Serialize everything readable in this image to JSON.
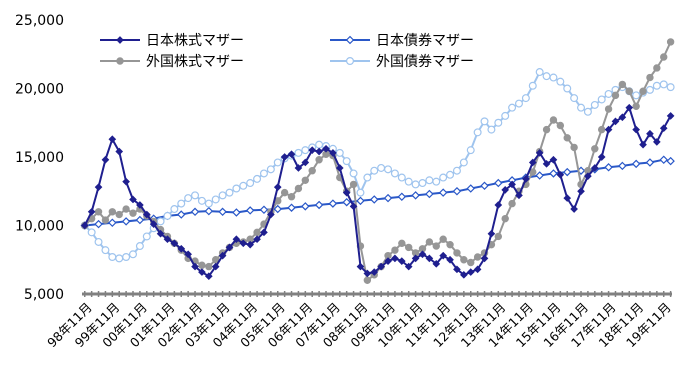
{
  "chart_data": {
    "type": "line",
    "title": "",
    "xlabel": "",
    "ylabel": "",
    "ylim": [
      5000,
      25000
    ],
    "yticks": [
      5000,
      10000,
      15000,
      20000,
      25000
    ],
    "ytick_labels": [
      "5,000",
      "10,000",
      "15,000",
      "20,000",
      "25,000"
    ],
    "xticks": [
      "98年11月",
      "99年11月",
      "00年11月",
      "01年11月",
      "02年11月",
      "03年11月",
      "04年11月",
      "05年11月",
      "06年11月",
      "07年11月",
      "08年11月",
      "09年11月",
      "10年11月",
      "11年11月",
      "12年11月",
      "13年11月",
      "14年11月",
      "15年11月",
      "16年11月",
      "17年11月",
      "18年11月",
      "19年11月"
    ],
    "xtick_positions": [
      0,
      1,
      2,
      3,
      4,
      5,
      6,
      7,
      8,
      9,
      10,
      11,
      12,
      13,
      14,
      15,
      16,
      17,
      18,
      19,
      20,
      21
    ],
    "legend_position": "top",
    "grid": false,
    "x_axis_color": "#808080",
    "series": [
      {
        "name": "日本株式マザー",
        "color": "#1f1f8f",
        "marker": "diamond",
        "x": [
          0,
          0.25,
          0.5,
          0.75,
          1,
          1.25,
          1.5,
          1.75,
          2,
          2.25,
          2.5,
          2.75,
          3,
          3.25,
          3.5,
          3.75,
          4,
          4.25,
          4.5,
          4.75,
          5,
          5.25,
          5.5,
          5.75,
          6,
          6.25,
          6.5,
          6.75,
          7,
          7.25,
          7.5,
          7.75,
          8,
          8.25,
          8.5,
          8.75,
          9,
          9.25,
          9.5,
          9.75,
          10,
          10.25,
          10.5,
          10.75,
          11,
          11.25,
          11.5,
          11.75,
          12,
          12.25,
          12.5,
          12.75,
          13,
          13.25,
          13.5,
          13.75,
          14,
          14.25,
          14.5,
          14.75,
          15,
          15.25,
          15.5,
          15.75,
          16,
          16.25,
          16.5,
          16.75,
          17,
          17.25,
          17.5,
          17.75,
          18,
          18.25,
          18.5,
          18.75,
          19,
          19.25,
          19.5,
          19.75,
          20,
          20.25,
          20.5,
          20.75,
          21,
          21.25
        ],
        "y": [
          10000,
          11000,
          12800,
          14800,
          16300,
          15400,
          13200,
          11900,
          11500,
          10800,
          10100,
          9400,
          9000,
          8700,
          8300,
          7900,
          7000,
          6600,
          6300,
          7000,
          7800,
          8400,
          9000,
          8700,
          8600,
          9000,
          9500,
          10800,
          12800,
          15000,
          15200,
          14200,
          14600,
          15500,
          15400,
          15600,
          15300,
          14200,
          12400,
          11400,
          7000,
          6500,
          6600,
          7000,
          7400,
          7600,
          7400,
          7000,
          7600,
          7900,
          7600,
          7200,
          7800,
          7500,
          6800,
          6400,
          6600,
          6800,
          7600,
          9400,
          11500,
          12600,
          13000,
          12200,
          13400,
          14600,
          15300,
          14500,
          14800,
          13700,
          12000,
          11200,
          12500,
          13600,
          14200,
          15000,
          17000,
          17600,
          17900,
          18600,
          17000,
          15900,
          16700,
          16100,
          17100,
          18000
        ]
      },
      {
        "name": "日本債券マザー",
        "color": "#2a58c8",
        "marker": "open-diamond",
        "x": [
          0,
          0.5,
          1,
          1.5,
          2,
          2.5,
          3,
          3.5,
          4,
          4.5,
          5,
          5.5,
          6,
          6.5,
          7,
          7.5,
          8,
          8.5,
          9,
          9.5,
          10,
          10.5,
          11,
          11.5,
          12,
          12.5,
          13,
          13.5,
          14,
          14.5,
          15,
          15.5,
          16,
          16.5,
          17,
          17.5,
          18,
          18.5,
          19,
          19.5,
          20,
          20.5,
          21,
          21.25
        ],
        "y": [
          10000,
          10100,
          10200,
          10300,
          10400,
          10500,
          10700,
          10800,
          11000,
          11050,
          11000,
          10950,
          11100,
          11150,
          11200,
          11300,
          11400,
          11500,
          11600,
          11700,
          11800,
          11900,
          12000,
          12100,
          12200,
          12300,
          12400,
          12500,
          12700,
          12900,
          13100,
          13300,
          13500,
          13650,
          13800,
          13900,
          14000,
          14100,
          14250,
          14350,
          14500,
          14600,
          14800,
          14700
        ]
      },
      {
        "name": "外国株式マザー",
        "color": "#969696",
        "marker": "circle",
        "x": [
          0,
          0.25,
          0.5,
          0.75,
          1,
          1.25,
          1.5,
          1.75,
          2,
          2.25,
          2.5,
          2.75,
          3,
          3.25,
          3.5,
          3.75,
          4,
          4.25,
          4.5,
          4.75,
          5,
          5.25,
          5.5,
          5.75,
          6,
          6.25,
          6.5,
          6.75,
          7,
          7.25,
          7.5,
          7.75,
          8,
          8.25,
          8.5,
          8.75,
          9,
          9.25,
          9.5,
          9.75,
          10,
          10.25,
          10.5,
          10.75,
          11,
          11.25,
          11.5,
          11.75,
          12,
          12.25,
          12.5,
          12.75,
          13,
          13.25,
          13.5,
          13.75,
          14,
          14.25,
          14.5,
          14.75,
          15,
          15.25,
          15.5,
          15.75,
          16,
          16.25,
          16.5,
          16.75,
          17,
          17.25,
          17.5,
          17.75,
          18,
          18.25,
          18.5,
          18.75,
          19,
          19.25,
          19.5,
          19.75,
          20,
          20.25,
          20.5,
          20.75,
          21,
          21.25
        ],
        "y": [
          10000,
          10500,
          11000,
          10400,
          11000,
          10800,
          11200,
          10900,
          11200,
          10700,
          10300,
          9700,
          9200,
          8700,
          8200,
          7600,
          7400,
          7100,
          7000,
          7500,
          8000,
          8400,
          8700,
          8800,
          9000,
          9500,
          10100,
          11000,
          11800,
          12400,
          12100,
          12700,
          13300,
          14000,
          14800,
          15200,
          15100,
          13500,
          12500,
          13000,
          8500,
          6000,
          6400,
          7000,
          7800,
          8200,
          8700,
          8400,
          8000,
          8300,
          8800,
          8500,
          9000,
          8600,
          8000,
          7500,
          7300,
          7700,
          8000,
          8600,
          9200,
          10500,
          11600,
          12500,
          13000,
          13900,
          15400,
          17000,
          17700,
          17300,
          16400,
          15700,
          13000,
          14000,
          15600,
          17000,
          18500,
          19500,
          20300,
          19800,
          18700,
          19800,
          20800,
          21500,
          22300,
          23400
        ]
      },
      {
        "name": "外国債券マザー",
        "color": "#9fc4ee",
        "marker": "open-circle",
        "x": [
          0,
          0.25,
          0.5,
          0.75,
          1,
          1.25,
          1.5,
          1.75,
          2,
          2.25,
          2.5,
          2.75,
          3,
          3.25,
          3.5,
          3.75,
          4,
          4.25,
          4.5,
          4.75,
          5,
          5.25,
          5.5,
          5.75,
          6,
          6.25,
          6.5,
          6.75,
          7,
          7.25,
          7.5,
          7.75,
          8,
          8.25,
          8.5,
          8.75,
          9,
          9.25,
          9.5,
          9.75,
          10,
          10.25,
          10.5,
          10.75,
          11,
          11.25,
          11.5,
          11.75,
          12,
          12.25,
          12.5,
          12.75,
          13,
          13.25,
          13.5,
          13.75,
          14,
          14.25,
          14.5,
          14.75,
          15,
          15.25,
          15.5,
          15.75,
          16,
          16.25,
          16.5,
          16.75,
          17,
          17.25,
          17.5,
          17.75,
          18,
          18.25,
          18.5,
          18.75,
          19,
          19.25,
          19.5,
          19.75,
          20,
          20.25,
          20.5,
          20.75,
          21,
          21.25
        ],
        "y": [
          10000,
          9500,
          8800,
          8200,
          7700,
          7600,
          7700,
          7900,
          8500,
          9200,
          9800,
          10300,
          10700,
          11200,
          11600,
          12000,
          12200,
          11800,
          11600,
          11900,
          12200,
          12400,
          12700,
          12900,
          13100,
          13400,
          13800,
          14100,
          14600,
          14900,
          15100,
          15300,
          15500,
          15700,
          15900,
          15800,
          15600,
          15300,
          14700,
          13800,
          12400,
          13500,
          14000,
          14200,
          14100,
          13800,
          13500,
          13200,
          13000,
          13100,
          13300,
          13200,
          13500,
          13700,
          14000,
          14600,
          15500,
          16800,
          17600,
          17000,
          17500,
          18000,
          18600,
          18900,
          19300,
          20200,
          21200,
          20900,
          20800,
          20500,
          20000,
          19300,
          18600,
          18300,
          18800,
          19200,
          19600,
          19900,
          20100,
          19800,
          19500,
          19700,
          19900,
          20200,
          20300,
          20100
        ]
      }
    ]
  }
}
